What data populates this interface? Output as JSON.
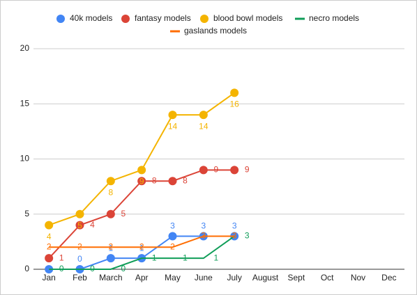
{
  "chart_data": {
    "type": "line",
    "categories": [
      "Jan",
      "Feb",
      "March",
      "Apr",
      "May",
      "June",
      "July",
      "August",
      "Sept",
      "Oct",
      "Nov",
      "Dec"
    ],
    "series": [
      {
        "name": "40k models",
        "color": "#4285f4",
        "markers": true,
        "values": [
          0,
          0,
          1,
          1,
          3,
          3,
          3,
          null,
          null,
          null,
          null,
          null
        ]
      },
      {
        "name": "fantasy models",
        "color": "#db4437",
        "markers": true,
        "values": [
          1,
          4,
          5,
          8,
          8,
          9,
          9,
          null,
          null,
          null,
          null,
          null
        ]
      },
      {
        "name": "blood bowl models",
        "color": "#f4b400",
        "markers": true,
        "values": [
          4,
          5,
          8,
          9,
          14,
          14,
          16,
          null,
          null,
          null,
          null,
          null
        ]
      },
      {
        "name": "necro models",
        "color": "#0f9d58",
        "markers": false,
        "values": [
          0,
          0,
          0,
          1,
          1,
          1,
          3,
          null,
          null,
          null,
          null,
          null
        ]
      },
      {
        "name": "gaslands models",
        "color": "#ff6d01",
        "markers": false,
        "values": [
          2,
          2,
          2,
          2,
          2,
          3,
          3,
          null,
          null,
          null,
          null,
          null
        ]
      }
    ],
    "ylim": [
      0,
      20
    ],
    "yticks": [
      0,
      5,
      10,
      15,
      20
    ],
    "grid": true,
    "legend": "top"
  }
}
